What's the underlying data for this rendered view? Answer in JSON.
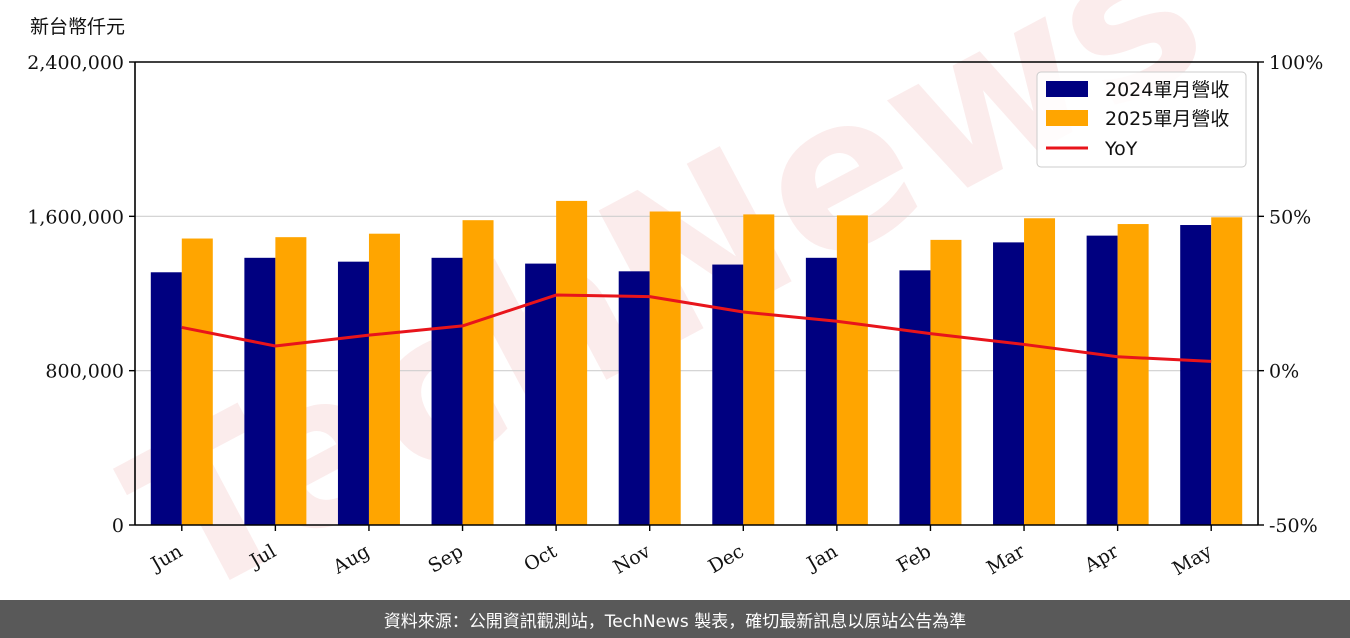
{
  "watermark": "TechNews",
  "footer_text": "資料來源：公開資訊觀測站，TechNews 製表，確切最新訊息以原站公告為準",
  "chart_data": {
    "type": "bar",
    "title": "",
    "ylabel": "新台幣仟元",
    "categories": [
      "Jun",
      "Jul",
      "Aug",
      "Sep",
      "Oct",
      "Nov",
      "Dec",
      "Jan",
      "Feb",
      "Mar",
      "Apr",
      "May"
    ],
    "series": [
      {
        "name": "2024單月營收",
        "type": "bar",
        "axis": "left",
        "color": "#000080",
        "values": [
          1310000,
          1385000,
          1365000,
          1385000,
          1355000,
          1315000,
          1350000,
          1385000,
          1320000,
          1465000,
          1500000,
          1555000
        ]
      },
      {
        "name": "2025單月營收",
        "type": "bar",
        "axis": "left",
        "color": "#ffa500",
        "values": [
          1485000,
          1492000,
          1510000,
          1580000,
          1680000,
          1625000,
          1610000,
          1605000,
          1478000,
          1590000,
          1560000,
          1595000
        ]
      },
      {
        "name": "YoY",
        "type": "line",
        "axis": "right",
        "color": "#e8141b",
        "values": [
          14.0,
          8.0,
          11.5,
          14.5,
          24.5,
          24.0,
          19.0,
          16.0,
          12.0,
          8.5,
          4.5,
          3.0
        ]
      }
    ],
    "y_left": {
      "min": 0,
      "max": 2400000,
      "ticks": [
        0,
        800000,
        1600000,
        2400000
      ],
      "tick_labels": [
        "0",
        "800,000",
        "1,600,000",
        "2,400,000"
      ]
    },
    "y_right": {
      "min": -50,
      "max": 100,
      "ticks": [
        -50,
        0,
        50,
        100
      ],
      "tick_labels": [
        "-50%",
        "0%",
        "50%",
        "100%"
      ]
    },
    "grid": "horizontal",
    "legend_position": "top-right"
  }
}
